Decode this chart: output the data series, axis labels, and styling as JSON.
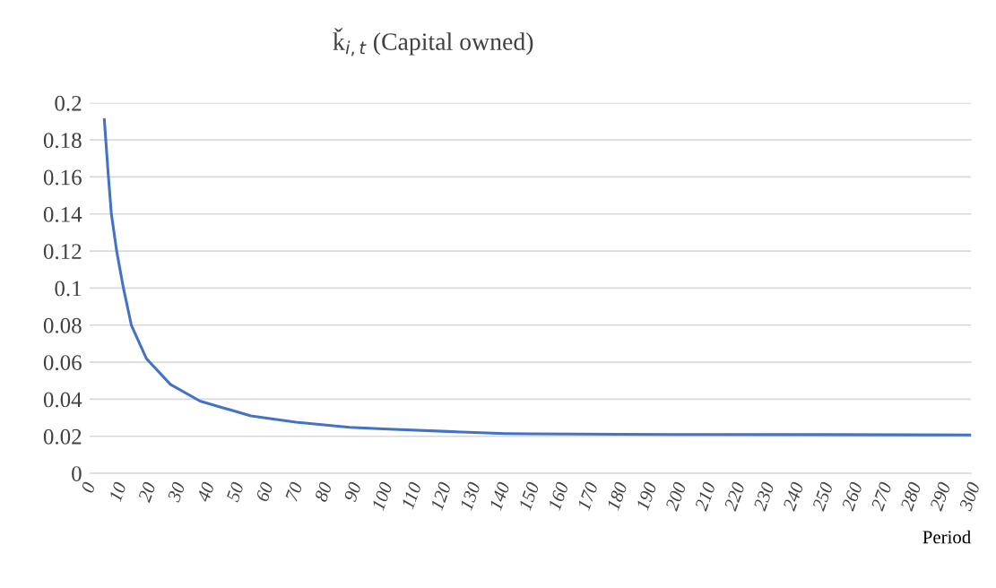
{
  "chart_data": {
    "type": "line",
    "title": "ǩ$_{i,t}$ (Capital owned)",
    "xlabel": "Period",
    "series": [
      {
        "color": "#4472c4",
        "x": [
          5,
          6.4,
          7.4,
          9.2,
          11.5,
          14.2,
          19.3,
          27.5,
          37.6,
          54.9,
          70.2,
          88.5,
          100,
          122,
          141.6,
          150,
          180,
          200,
          250,
          300
        ],
        "values": [
          0.191,
          0.16,
          0.14,
          0.12,
          0.1,
          0.08,
          0.062,
          0.048,
          0.039,
          0.031,
          0.0276,
          0.0248,
          0.024,
          0.0226,
          0.0215,
          0.0213,
          0.0211,
          0.021,
          0.0209,
          0.0207
        ]
      }
    ],
    "xlim": [
      0,
      300
    ],
    "xticks": [
      0,
      10,
      20,
      30,
      40,
      50,
      60,
      70,
      80,
      90,
      100,
      110,
      120,
      130,
      140,
      150,
      160,
      170,
      180,
      190,
      200,
      210,
      220,
      230,
      240,
      250,
      260,
      270,
      280,
      290,
      300
    ],
    "ylim": [
      0,
      0.2
    ],
    "yticks": [
      0,
      0.02,
      0.04,
      0.06,
      0.08,
      0.1,
      0.12,
      0.14,
      0.16,
      0.18,
      0.2
    ],
    "grid": "y",
    "marker": "none",
    "line_style": "solid"
  }
}
